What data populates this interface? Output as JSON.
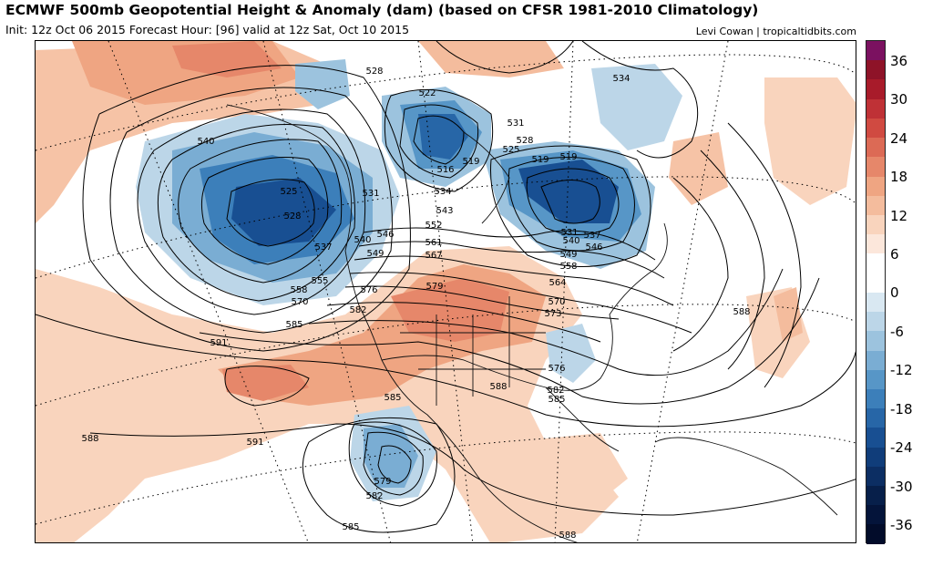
{
  "header": {
    "title": "ECMWF 500mb Geopotential Height & Anomaly (dam) (based on CFSR 1981-2010 Climatology)",
    "subtitle": "Init: 12z Oct 06 2015   Forecast Hour: [96]   valid at 12z Sat, Oct 10 2015",
    "credit": "Levi Cowan | tropicaltidbits.com"
  },
  "colorbar": {
    "labels": [
      "36",
      "30",
      "24",
      "18",
      "12",
      "6",
      "0",
      "-6",
      "-12",
      "-18",
      "-24",
      "-30",
      "-36"
    ],
    "colors": [
      "#7b1160",
      "#8e1328",
      "#a81b2a",
      "#bf3136",
      "#d04a41",
      "#dc6a55",
      "#e6876a",
      "#efa582",
      "#f4bc9d",
      "#f9d4bd",
      "#fce7db",
      "#ffffff",
      "#ffffff",
      "#d9e8f2",
      "#bcd6e8",
      "#9cc3de",
      "#7aadd3",
      "#5796c7",
      "#3c7fba",
      "#2766a7",
      "#184f92",
      "#103d7a",
      "#0c2e63",
      "#071f4a",
      "#04143a",
      "#020c2a"
    ]
  },
  "contour_labels": [
    {
      "text": "528"
    },
    {
      "text": "522"
    },
    {
      "text": "534"
    },
    {
      "text": "531"
    },
    {
      "text": "528"
    },
    {
      "text": "525"
    },
    {
      "text": "519"
    },
    {
      "text": "519"
    },
    {
      "text": "516"
    },
    {
      "text": "519"
    },
    {
      "text": "540"
    },
    {
      "text": "525"
    },
    {
      "text": "528"
    },
    {
      "text": "531"
    },
    {
      "text": "534"
    },
    {
      "text": "543"
    },
    {
      "text": "537"
    },
    {
      "text": "540"
    },
    {
      "text": "546"
    },
    {
      "text": "549"
    },
    {
      "text": "552"
    },
    {
      "text": "561"
    },
    {
      "text": "567"
    },
    {
      "text": "555"
    },
    {
      "text": "558"
    },
    {
      "text": "570"
    },
    {
      "text": "576"
    },
    {
      "text": "579"
    },
    {
      "text": "582"
    },
    {
      "text": "585"
    },
    {
      "text": "591"
    },
    {
      "text": "531"
    },
    {
      "text": "537"
    },
    {
      "text": "540"
    },
    {
      "text": "546"
    },
    {
      "text": "549"
    },
    {
      "text": "558"
    },
    {
      "text": "564"
    },
    {
      "text": "570"
    },
    {
      "text": "573"
    },
    {
      "text": "588"
    },
    {
      "text": "576"
    },
    {
      "text": "582"
    },
    {
      "text": "585"
    },
    {
      "text": "588"
    },
    {
      "text": "585"
    },
    {
      "text": "579"
    },
    {
      "text": "582"
    },
    {
      "text": "585"
    },
    {
      "text": "588"
    },
    {
      "text": "591"
    },
    {
      "text": "588"
    }
  ]
}
